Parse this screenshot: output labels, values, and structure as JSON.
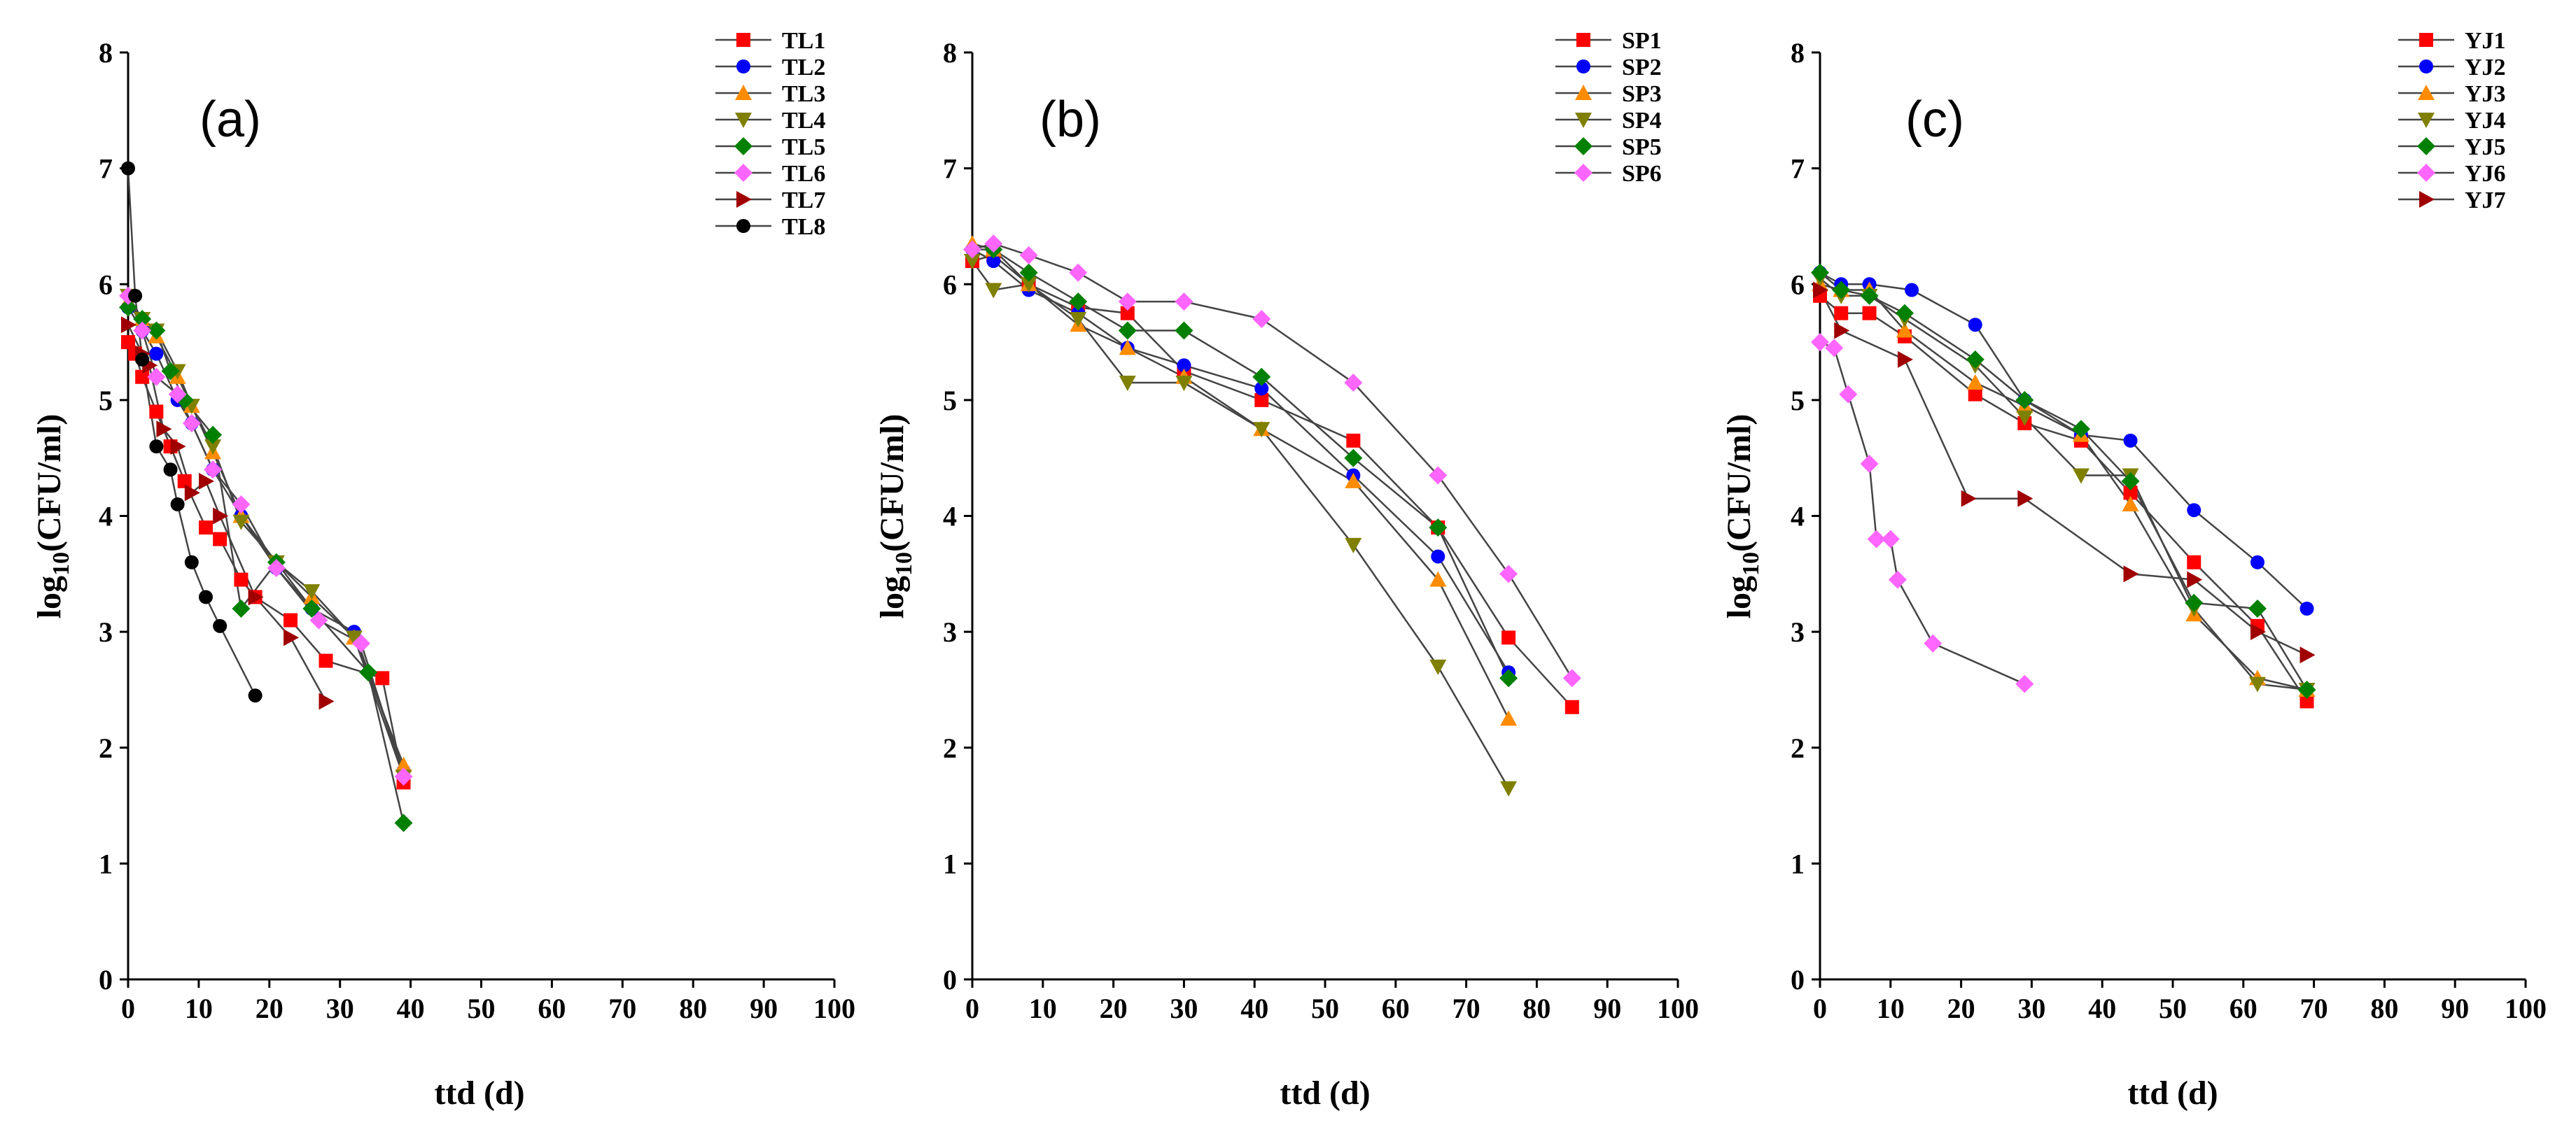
{
  "chart_data": [
    {
      "type": "line",
      "panel_label": "(a)",
      "xlabel": "ttd (d)",
      "ylabel": "log10(CFU/ml)",
      "ylabel_main": "log",
      "ylabel_sub": "10",
      "ylabel_rest": "(CFU/ml)",
      "xlim": [
        0,
        100
      ],
      "ylim": [
        0,
        8
      ],
      "xticks": [
        "0",
        "10",
        "20",
        "30",
        "40",
        "50",
        "60",
        "70",
        "80",
        "90",
        "100"
      ],
      "yticks": [
        "0",
        "1",
        "2",
        "3",
        "4",
        "5",
        "6",
        "7",
        "8"
      ],
      "legend_position": "top-right",
      "series": [
        {
          "name": "TL1",
          "color": "#ff0000",
          "marker": "square",
          "x": [
            0,
            1,
            2,
            4,
            6,
            8,
            11,
            13,
            16,
            18,
            23,
            28,
            36,
            39
          ],
          "y": [
            5.5,
            5.4,
            5.2,
            4.9,
            4.6,
            4.3,
            3.9,
            3.8,
            3.45,
            3.3,
            3.1,
            2.75,
            2.6,
            1.7
          ]
        },
        {
          "name": "TL2",
          "color": "#0000ff",
          "marker": "circle",
          "x": [
            0,
            2,
            4,
            7,
            9,
            12,
            16,
            21,
            26,
            32,
            39
          ],
          "y": [
            5.8,
            5.6,
            5.4,
            5.0,
            4.8,
            4.4,
            4.0,
            3.55,
            3.2,
            3.0,
            1.8
          ]
        },
        {
          "name": "TL3",
          "color": "#ff8c00",
          "marker": "triangle-up",
          "x": [
            0,
            2,
            4,
            7,
            9,
            12,
            16,
            21,
            26,
            32,
            39
          ],
          "y": [
            5.85,
            5.7,
            5.55,
            5.2,
            4.95,
            4.55,
            4.0,
            3.6,
            3.3,
            2.95,
            1.85
          ]
        },
        {
          "name": "TL4",
          "color": "#808000",
          "marker": "triangle-down",
          "x": [
            0,
            2,
            4,
            7,
            9,
            12,
            16,
            21,
            26,
            32,
            39
          ],
          "y": [
            5.9,
            5.7,
            5.6,
            5.25,
            4.95,
            4.6,
            3.95,
            3.6,
            3.35,
            2.95,
            1.75
          ]
        },
        {
          "name": "TL5",
          "color": "#008000",
          "marker": "diamond",
          "x": [
            0,
            2,
            4,
            6,
            8,
            12,
            16,
            21,
            26,
            34,
            39
          ],
          "y": [
            5.8,
            5.7,
            5.6,
            5.25,
            5.0,
            4.7,
            3.2,
            3.6,
            3.2,
            2.65,
            1.35
          ]
        },
        {
          "name": "TL6",
          "color": "#ff66ff",
          "marker": "diamond",
          "x": [
            0,
            2,
            4,
            7,
            9,
            12,
            16,
            21,
            27,
            33,
            39
          ],
          "y": [
            5.9,
            5.6,
            5.2,
            5.05,
            4.8,
            4.4,
            4.1,
            3.55,
            3.1,
            2.9,
            1.75
          ]
        },
        {
          "name": "TL7",
          "color": "#a00000",
          "marker": "triangle-right",
          "x": [
            0,
            2,
            3,
            5,
            7,
            9,
            11,
            13,
            18,
            23,
            28
          ],
          "y": [
            5.65,
            5.4,
            5.3,
            4.75,
            4.6,
            4.2,
            4.3,
            4.0,
            3.3,
            2.95,
            2.4
          ]
        },
        {
          "name": "TL8",
          "color": "#000000",
          "marker": "circle",
          "x": [
            0,
            1,
            2,
            4,
            6,
            7,
            9,
            11,
            13,
            18
          ],
          "y": [
            7.0,
            5.9,
            5.35,
            4.6,
            4.4,
            4.1,
            3.6,
            3.3,
            3.05,
            2.45
          ]
        }
      ]
    },
    {
      "type": "line",
      "panel_label": "(b)",
      "xlabel": "ttd (d)",
      "ylabel": "log10(CFU/ml)",
      "ylabel_main": "log",
      "ylabel_sub": "10",
      "ylabel_rest": "(CFU/ml)",
      "xlim": [
        0,
        100
      ],
      "ylim": [
        0,
        8
      ],
      "xticks": [
        "0",
        "10",
        "20",
        "30",
        "40",
        "50",
        "60",
        "70",
        "80",
        "90",
        "100"
      ],
      "yticks": [
        "0",
        "1",
        "2",
        "3",
        "4",
        "5",
        "6",
        "7",
        "8"
      ],
      "legend_position": "top-right",
      "series": [
        {
          "name": "SP1",
          "color": "#ff0000",
          "marker": "square",
          "x": [
            0,
            3,
            8,
            15,
            22,
            30,
            41,
            54,
            66,
            76,
            85
          ],
          "y": [
            6.2,
            6.25,
            6.0,
            5.8,
            5.75,
            5.25,
            5.0,
            4.65,
            3.9,
            2.95,
            2.35
          ]
        },
        {
          "name": "SP2",
          "color": "#0000ff",
          "marker": "circle",
          "x": [
            0,
            3,
            8,
            15,
            22,
            30,
            41,
            54,
            66,
            76
          ],
          "y": [
            6.3,
            6.2,
            5.95,
            5.75,
            5.45,
            5.3,
            5.1,
            4.35,
            3.65,
            2.65
          ]
        },
        {
          "name": "SP3",
          "color": "#ff8c00",
          "marker": "triangle-up",
          "x": [
            0,
            3,
            8,
            15,
            22,
            30,
            41,
            54,
            66,
            76
          ],
          "y": [
            6.35,
            6.3,
            6.0,
            5.65,
            5.45,
            5.2,
            4.75,
            4.3,
            3.45,
            2.25
          ]
        },
        {
          "name": "SP4",
          "color": "#808000",
          "marker": "triangle-down",
          "x": [
            0,
            3,
            8,
            15,
            22,
            30,
            41,
            54,
            66,
            76
          ],
          "y": [
            6.2,
            5.95,
            6.0,
            5.7,
            5.15,
            5.15,
            4.75,
            3.75,
            2.7,
            1.65
          ]
        },
        {
          "name": "SP5",
          "color": "#008000",
          "marker": "diamond",
          "x": [
            0,
            3,
            8,
            15,
            22,
            30,
            41,
            54,
            66,
            76
          ],
          "y": [
            6.3,
            6.3,
            6.1,
            5.85,
            5.6,
            5.6,
            5.2,
            4.5,
            3.9,
            2.6
          ]
        },
        {
          "name": "SP6",
          "color": "#ff66ff",
          "marker": "diamond",
          "x": [
            0,
            3,
            8,
            15,
            22,
            30,
            41,
            54,
            66,
            76,
            85
          ],
          "y": [
            6.3,
            6.35,
            6.25,
            6.1,
            5.85,
            5.85,
            5.7,
            5.15,
            4.35,
            3.5,
            2.6
          ]
        }
      ]
    },
    {
      "type": "line",
      "panel_label": "(c)",
      "xlabel": "ttd (d)",
      "ylabel": "log10(CFU/ml)",
      "ylabel_main": "log",
      "ylabel_sub": "10",
      "ylabel_rest": "(CFU/ml)",
      "xlim": [
        0,
        100
      ],
      "ylim": [
        0,
        8
      ],
      "xticks": [
        "0",
        "10",
        "20",
        "30",
        "40",
        "50",
        "60",
        "70",
        "80",
        "90",
        "100"
      ],
      "yticks": [
        "0",
        "1",
        "2",
        "3",
        "4",
        "5",
        "6",
        "7",
        "8"
      ],
      "legend_position": "top-right",
      "series": [
        {
          "name": "YJ1",
          "color": "#ff0000",
          "marker": "square",
          "x": [
            0,
            3,
            7,
            12,
            22,
            29,
            37,
            44,
            53,
            62,
            69
          ],
          "y": [
            5.9,
            5.75,
            5.75,
            5.55,
            5.05,
            4.8,
            4.65,
            4.2,
            3.6,
            3.05,
            2.4
          ]
        },
        {
          "name": "YJ2",
          "color": "#0000ff",
          "marker": "circle",
          "x": [
            0,
            3,
            7,
            13,
            22,
            29,
            37,
            44,
            53,
            62,
            69
          ],
          "y": [
            6.1,
            6.0,
            6.0,
            5.95,
            5.65,
            5.0,
            4.7,
            4.65,
            4.05,
            3.6,
            3.2
          ]
        },
        {
          "name": "YJ3",
          "color": "#ff8c00",
          "marker": "triangle-up",
          "x": [
            0,
            3,
            7,
            12,
            22,
            29,
            37,
            44,
            53,
            62,
            69
          ],
          "y": [
            6.0,
            5.95,
            5.95,
            5.6,
            5.15,
            4.95,
            4.7,
            4.1,
            3.15,
            2.6,
            2.5
          ]
        },
        {
          "name": "YJ4",
          "color": "#808000",
          "marker": "triangle-down",
          "x": [
            0,
            3,
            7,
            12,
            22,
            29,
            37,
            44,
            53,
            62,
            69
          ],
          "y": [
            6.05,
            5.9,
            5.9,
            5.7,
            5.3,
            4.85,
            4.35,
            4.35,
            3.2,
            2.55,
            2.5
          ]
        },
        {
          "name": "YJ5",
          "color": "#008000",
          "marker": "diamond",
          "x": [
            0,
            3,
            7,
            12,
            22,
            29,
            37,
            44,
            53,
            62,
            69
          ],
          "y": [
            6.1,
            5.95,
            5.9,
            5.75,
            5.35,
            5.0,
            4.75,
            4.3,
            3.25,
            3.2,
            2.5
          ]
        },
        {
          "name": "YJ6",
          "color": "#ff66ff",
          "marker": "diamond",
          "x": [
            0,
            2,
            4,
            7,
            8,
            10,
            11,
            16,
            29
          ],
          "y": [
            5.5,
            5.45,
            5.05,
            4.45,
            3.8,
            3.8,
            3.45,
            2.9,
            2.55
          ]
        },
        {
          "name": "YJ7",
          "color": "#a00000",
          "marker": "triangle-right",
          "x": [
            0,
            3,
            12,
            21,
            29,
            44,
            53,
            62,
            69
          ],
          "y": [
            5.95,
            5.6,
            5.35,
            4.15,
            4.15,
            3.5,
            3.45,
            3.0,
            2.8
          ]
        }
      ]
    }
  ]
}
